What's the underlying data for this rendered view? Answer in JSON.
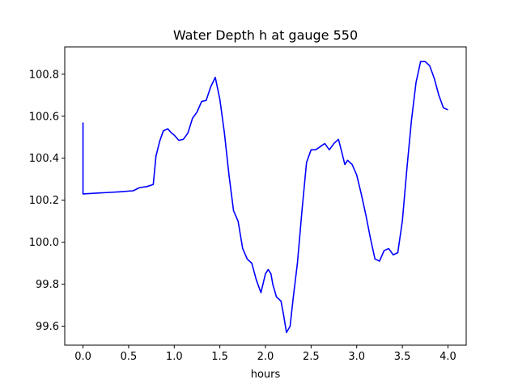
{
  "chart_data": {
    "type": "line",
    "title": "Water Depth h at gauge 550",
    "xlabel": "hours",
    "ylabel": "",
    "xlim": [
      -0.2,
      4.2
    ],
    "ylim": [
      99.51,
      100.93
    ],
    "xticks": [
      0.0,
      0.5,
      1.0,
      1.5,
      2.0,
      2.5,
      3.0,
      3.5,
      4.0
    ],
    "xtick_labels": [
      "0.0",
      "0.5",
      "1.0",
      "1.5",
      "2.0",
      "2.5",
      "3.0",
      "3.5",
      "4.0"
    ],
    "yticks": [
      99.6,
      99.8,
      100.0,
      100.2,
      100.4,
      100.6,
      100.8
    ],
    "ytick_labels": [
      "99.6",
      "99.8",
      "100.0",
      "100.2",
      "100.4",
      "100.6",
      "100.8"
    ],
    "grid": false,
    "series": [
      {
        "color": "#0000ff",
        "x": [
          0.0,
          0.0,
          0.2,
          0.4,
          0.55,
          0.62,
          0.7,
          0.77,
          0.8,
          0.84,
          0.88,
          0.93,
          0.97,
          1.0,
          1.05,
          1.1,
          1.15,
          1.2,
          1.25,
          1.3,
          1.35,
          1.4,
          1.45,
          1.5,
          1.55,
          1.6,
          1.65,
          1.7,
          1.75,
          1.8,
          1.85,
          1.9,
          1.95,
          2.0,
          2.03,
          2.06,
          2.08,
          2.12,
          2.17,
          2.2,
          2.23,
          2.27,
          2.3,
          2.35,
          2.4,
          2.45,
          2.5,
          2.55,
          2.6,
          2.65,
          2.7,
          2.75,
          2.8,
          2.83,
          2.87,
          2.9,
          2.95,
          3.0,
          3.05,
          3.1,
          3.15,
          3.2,
          3.25,
          3.3,
          3.35,
          3.4,
          3.45,
          3.5,
          3.55,
          3.6,
          3.65,
          3.7,
          3.75,
          3.8,
          3.85,
          3.9,
          3.95,
          4.0
        ],
        "y": [
          100.57,
          100.23,
          100.235,
          100.24,
          100.245,
          100.26,
          100.265,
          100.275,
          100.41,
          100.48,
          100.53,
          100.54,
          100.52,
          100.51,
          100.485,
          100.49,
          100.52,
          100.59,
          100.62,
          100.67,
          100.675,
          100.74,
          100.785,
          100.68,
          100.52,
          100.32,
          100.15,
          100.1,
          99.97,
          99.92,
          99.9,
          99.82,
          99.76,
          99.85,
          99.87,
          99.85,
          99.8,
          99.74,
          99.72,
          99.65,
          99.57,
          99.6,
          99.72,
          99.9,
          100.15,
          100.38,
          100.44,
          100.44,
          100.455,
          100.47,
          100.44,
          100.47,
          100.49,
          100.44,
          100.37,
          100.39,
          100.37,
          100.32,
          100.23,
          100.13,
          100.02,
          99.92,
          99.91,
          99.96,
          99.97,
          99.94,
          99.95,
          100.1,
          100.35,
          100.58,
          100.76,
          100.86,
          100.86,
          100.84,
          100.78,
          100.7,
          100.64,
          100.63
        ]
      }
    ]
  }
}
